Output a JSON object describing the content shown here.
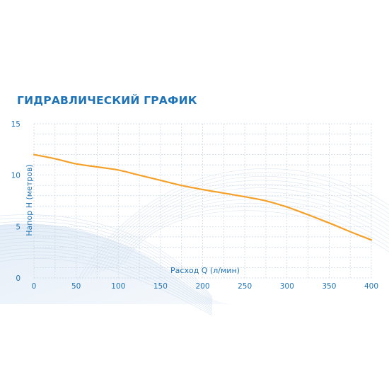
{
  "chart_data": {
    "type": "line",
    "title": "ГИДРАВЛИЧЕСКИЙ ГРАФИК",
    "xlabel": "Расход Q (л/мин)",
    "ylabel": "Напор H (метров)",
    "xlim": [
      0,
      400
    ],
    "ylim": [
      0,
      15
    ],
    "xticks": [
      "0",
      "50",
      "100",
      "150",
      "200",
      "250",
      "300",
      "350",
      "400"
    ],
    "yticks": [
      "0",
      "5",
      "10",
      "15"
    ],
    "grid": true,
    "series": [
      {
        "color": "#f5a028",
        "x": [
          0,
          25,
          50,
          75,
          100,
          125,
          150,
          175,
          200,
          225,
          250,
          275,
          300,
          325,
          350,
          375,
          400
        ],
        "y": [
          12.0,
          11.6,
          11.1,
          10.8,
          10.5,
          10.0,
          9.5,
          9.0,
          8.6,
          8.25,
          7.9,
          7.5,
          6.9,
          6.15,
          5.35,
          4.5,
          3.7
        ]
      }
    ]
  },
  "colors": {
    "accent": "#1f73b7",
    "grid": "#c9d6e3",
    "curve": "#f5a028"
  }
}
